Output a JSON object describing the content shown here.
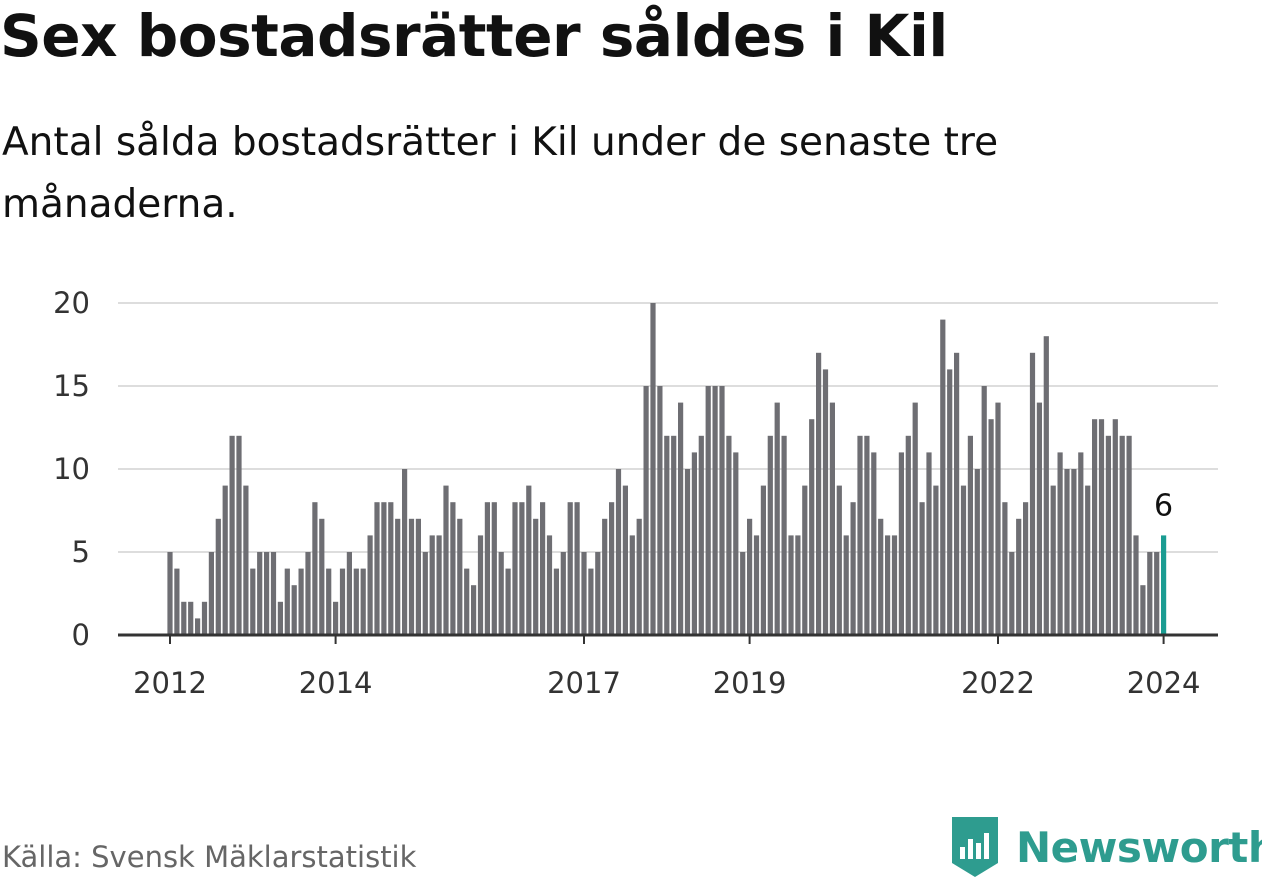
{
  "header": {
    "title": "Sex bostadsrätter såldes i Kil",
    "subtitle": "Antal sålda bostadsrätter i Kil under de senaste tre månaderna."
  },
  "footer": {
    "source": "Källa: Svensk Mäklarstatistik",
    "brand": "Newsworthy"
  },
  "colors": {
    "bar": "#6e6e73",
    "highlight": "#1a9c92",
    "grid": "#dddddd",
    "axis": "#333333",
    "brand": "#2e9c8f"
  },
  "chart_data": {
    "type": "bar",
    "title": "Sex bostadsrätter såldes i Kil",
    "xlabel": "",
    "ylabel": "",
    "ylim": [
      0,
      20
    ],
    "yticks": [
      0,
      5,
      10,
      15,
      20
    ],
    "grid": true,
    "x_start": {
      "year": 2012,
      "month": 1
    },
    "xtick_labels": [
      {
        "label": "2012",
        "index": 0
      },
      {
        "label": "2014",
        "index": 24
      },
      {
        "label": "2017",
        "index": 60
      },
      {
        "label": "2019",
        "index": 84
      },
      {
        "label": "2022",
        "index": 120
      },
      {
        "label": "2024",
        "index": 144
      }
    ],
    "series": [
      {
        "name": "Antal sålda bostadsrätter",
        "values": [
          5,
          4,
          2,
          2,
          1,
          2,
          5,
          7,
          9,
          12,
          12,
          9,
          4,
          5,
          5,
          5,
          2,
          4,
          3,
          4,
          5,
          8,
          7,
          4,
          2,
          4,
          5,
          4,
          4,
          6,
          8,
          8,
          8,
          7,
          10,
          7,
          7,
          5,
          6,
          6,
          9,
          8,
          7,
          4,
          3,
          6,
          8,
          8,
          5,
          4,
          8,
          8,
          9,
          7,
          8,
          6,
          4,
          5,
          8,
          8,
          5,
          4,
          5,
          7,
          8,
          10,
          9,
          6,
          7,
          15,
          20,
          15,
          12,
          12,
          14,
          10,
          11,
          12,
          15,
          15,
          15,
          12,
          11,
          5,
          7,
          6,
          9,
          12,
          14,
          12,
          6,
          6,
          9,
          13,
          17,
          16,
          14,
          9,
          6,
          8,
          12,
          12,
          11,
          7,
          6,
          6,
          11,
          12,
          14,
          8,
          11,
          9,
          19,
          16,
          17,
          9,
          12,
          10,
          15,
          13,
          14,
          8,
          5,
          7,
          8,
          17,
          14,
          18,
          9,
          11,
          10,
          10,
          11,
          9,
          13,
          13,
          12,
          13,
          12,
          12,
          6,
          3,
          5,
          5,
          6
        ]
      }
    ],
    "highlight": {
      "index": 144,
      "label": "6"
    }
  }
}
